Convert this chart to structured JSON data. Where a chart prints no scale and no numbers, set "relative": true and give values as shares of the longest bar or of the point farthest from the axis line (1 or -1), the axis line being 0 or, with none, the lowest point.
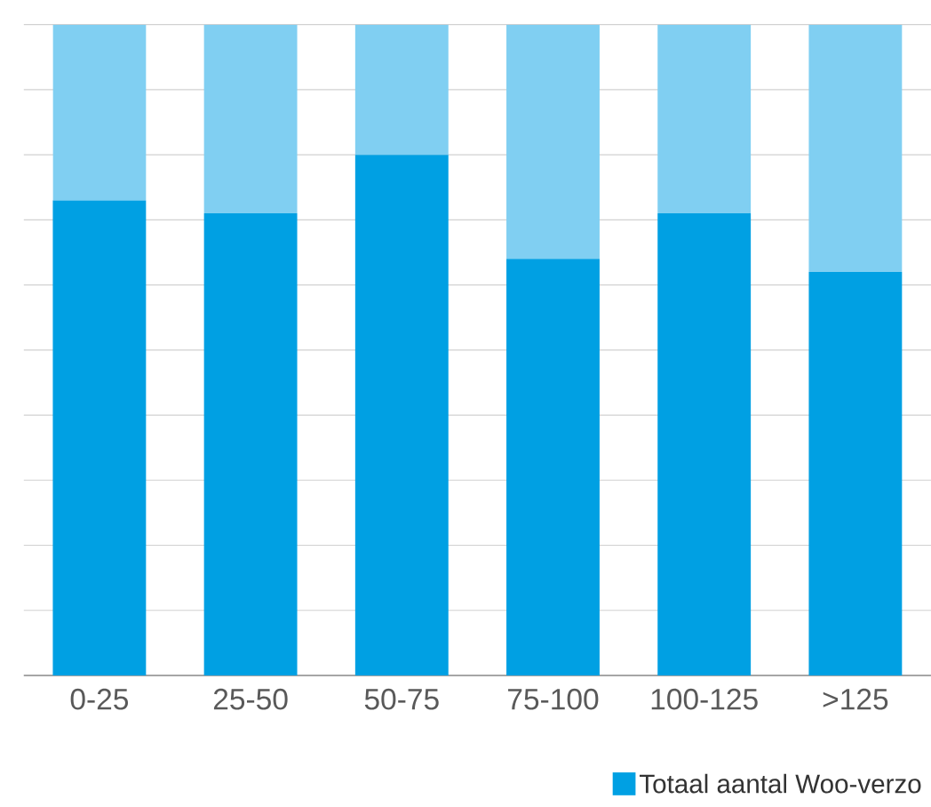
{
  "chart_data": {
    "type": "bar",
    "stacked": true,
    "relative": true,
    "grid": "y",
    "legend": "bottom",
    "categories": [
      "0-25",
      "25-50",
      "50-75",
      "75-100",
      "100-125",
      ">125"
    ],
    "series": [
      {
        "name": "Totaal aantal Woo-verzo",
        "color": "#00a0e3",
        "values": [
          0.73,
          0.71,
          0.8,
          0.64,
          0.71,
          0.62
        ]
      },
      {
        "color": "#80cff2",
        "values": [
          0.27,
          0.29,
          0.2,
          0.36,
          0.29,
          0.38
        ]
      }
    ]
  }
}
